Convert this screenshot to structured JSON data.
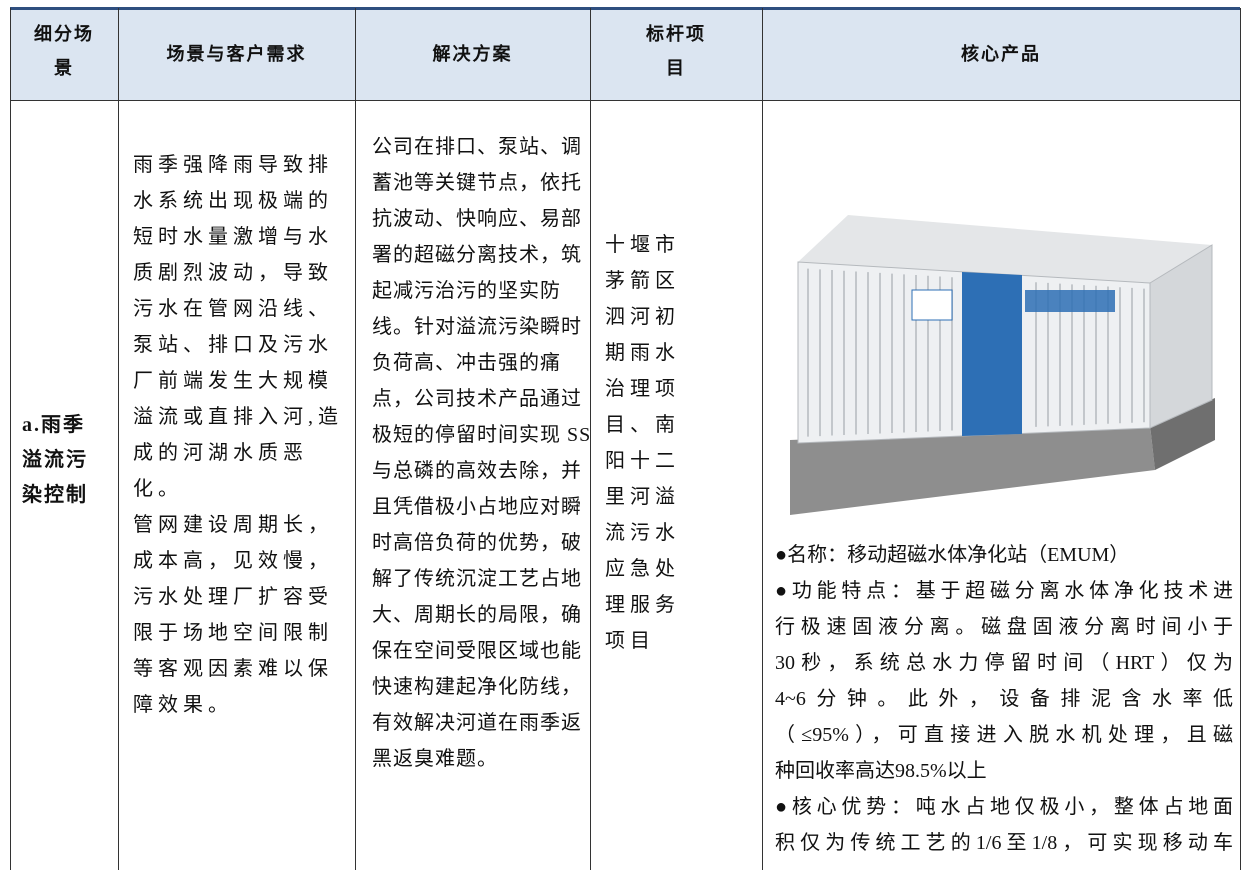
{
  "table": {
    "header": [
      [
        "细分场",
        "景"
      ],
      [
        "场景与客户需求"
      ],
      [
        "解决方案"
      ],
      [
        "标杆项",
        "目"
      ],
      [
        "核心产品"
      ]
    ],
    "rows": [
      [
        [
          "a.雨季",
          "溢流污",
          "染控制"
        ],
        [
          "雨季强降雨导致排",
          "水系统出现极端的",
          "短时水量激增与水",
          "质剧烈波动，导致",
          "污水在管网沿线、",
          "泵站、排口及污水",
          "厂前端发生大规模",
          "溢流或直排入河,造",
          "成的河湖水质恶",
          "化。",
          "管网建设周期长，",
          "成本高，见效慢，",
          "污水处理厂扩容受",
          "限于场地空间限制",
          "等客观因素难以保",
          "障效果。"
        ],
        [
          "公司在排口、泵站、调",
          "蓄池等关键节点，依托",
          "抗波动、快响应、易部",
          "署的超磁分离技术，筑",
          "起减污治污的坚实防",
          "线。针对溢流污染瞬时",
          "负荷高、冲击强的痛",
          "点，公司技术产品通过",
          "极短的停留时间实现 SS",
          "与总磷的高效去除，并",
          "且凭借极小占地应对瞬",
          "时高倍负荷的优势，破",
          "解了传统沉淀工艺占地",
          "大、周期长的局限，确",
          "保在空间受限区域也能",
          "快速构建起净化防线，",
          "有效解决河道在雨季返",
          "黑返臭难题。"
        ],
        [
          "十堰市",
          "茅箭区",
          "泗河初",
          "期雨水",
          "治理项",
          "目、南",
          "阳十二",
          "里河溢",
          "流污水",
          "应急处",
          "理服务",
          "项目"
        ],
        [
          "●名称：移动超磁水体净化站（EMUM）",
          "●功能特点：基于超磁分离水体净化技术进",
          "行极速固液分离。磁盘固液分离时间小于",
          "30秒，系统总水力停留时间（HRT）仅为",
          "4~6分钟。此外，设备排泥含水率低",
          "（≤95%），可直接进入脱水机处理，且磁",
          "种回收率高达98.5%以上",
          "●核心优势：吨水占地仅极小，整体占地面",
          "积仅为传统工艺的1/6至1/8，可实现移动车"
        ]
      ]
    ]
  }
}
